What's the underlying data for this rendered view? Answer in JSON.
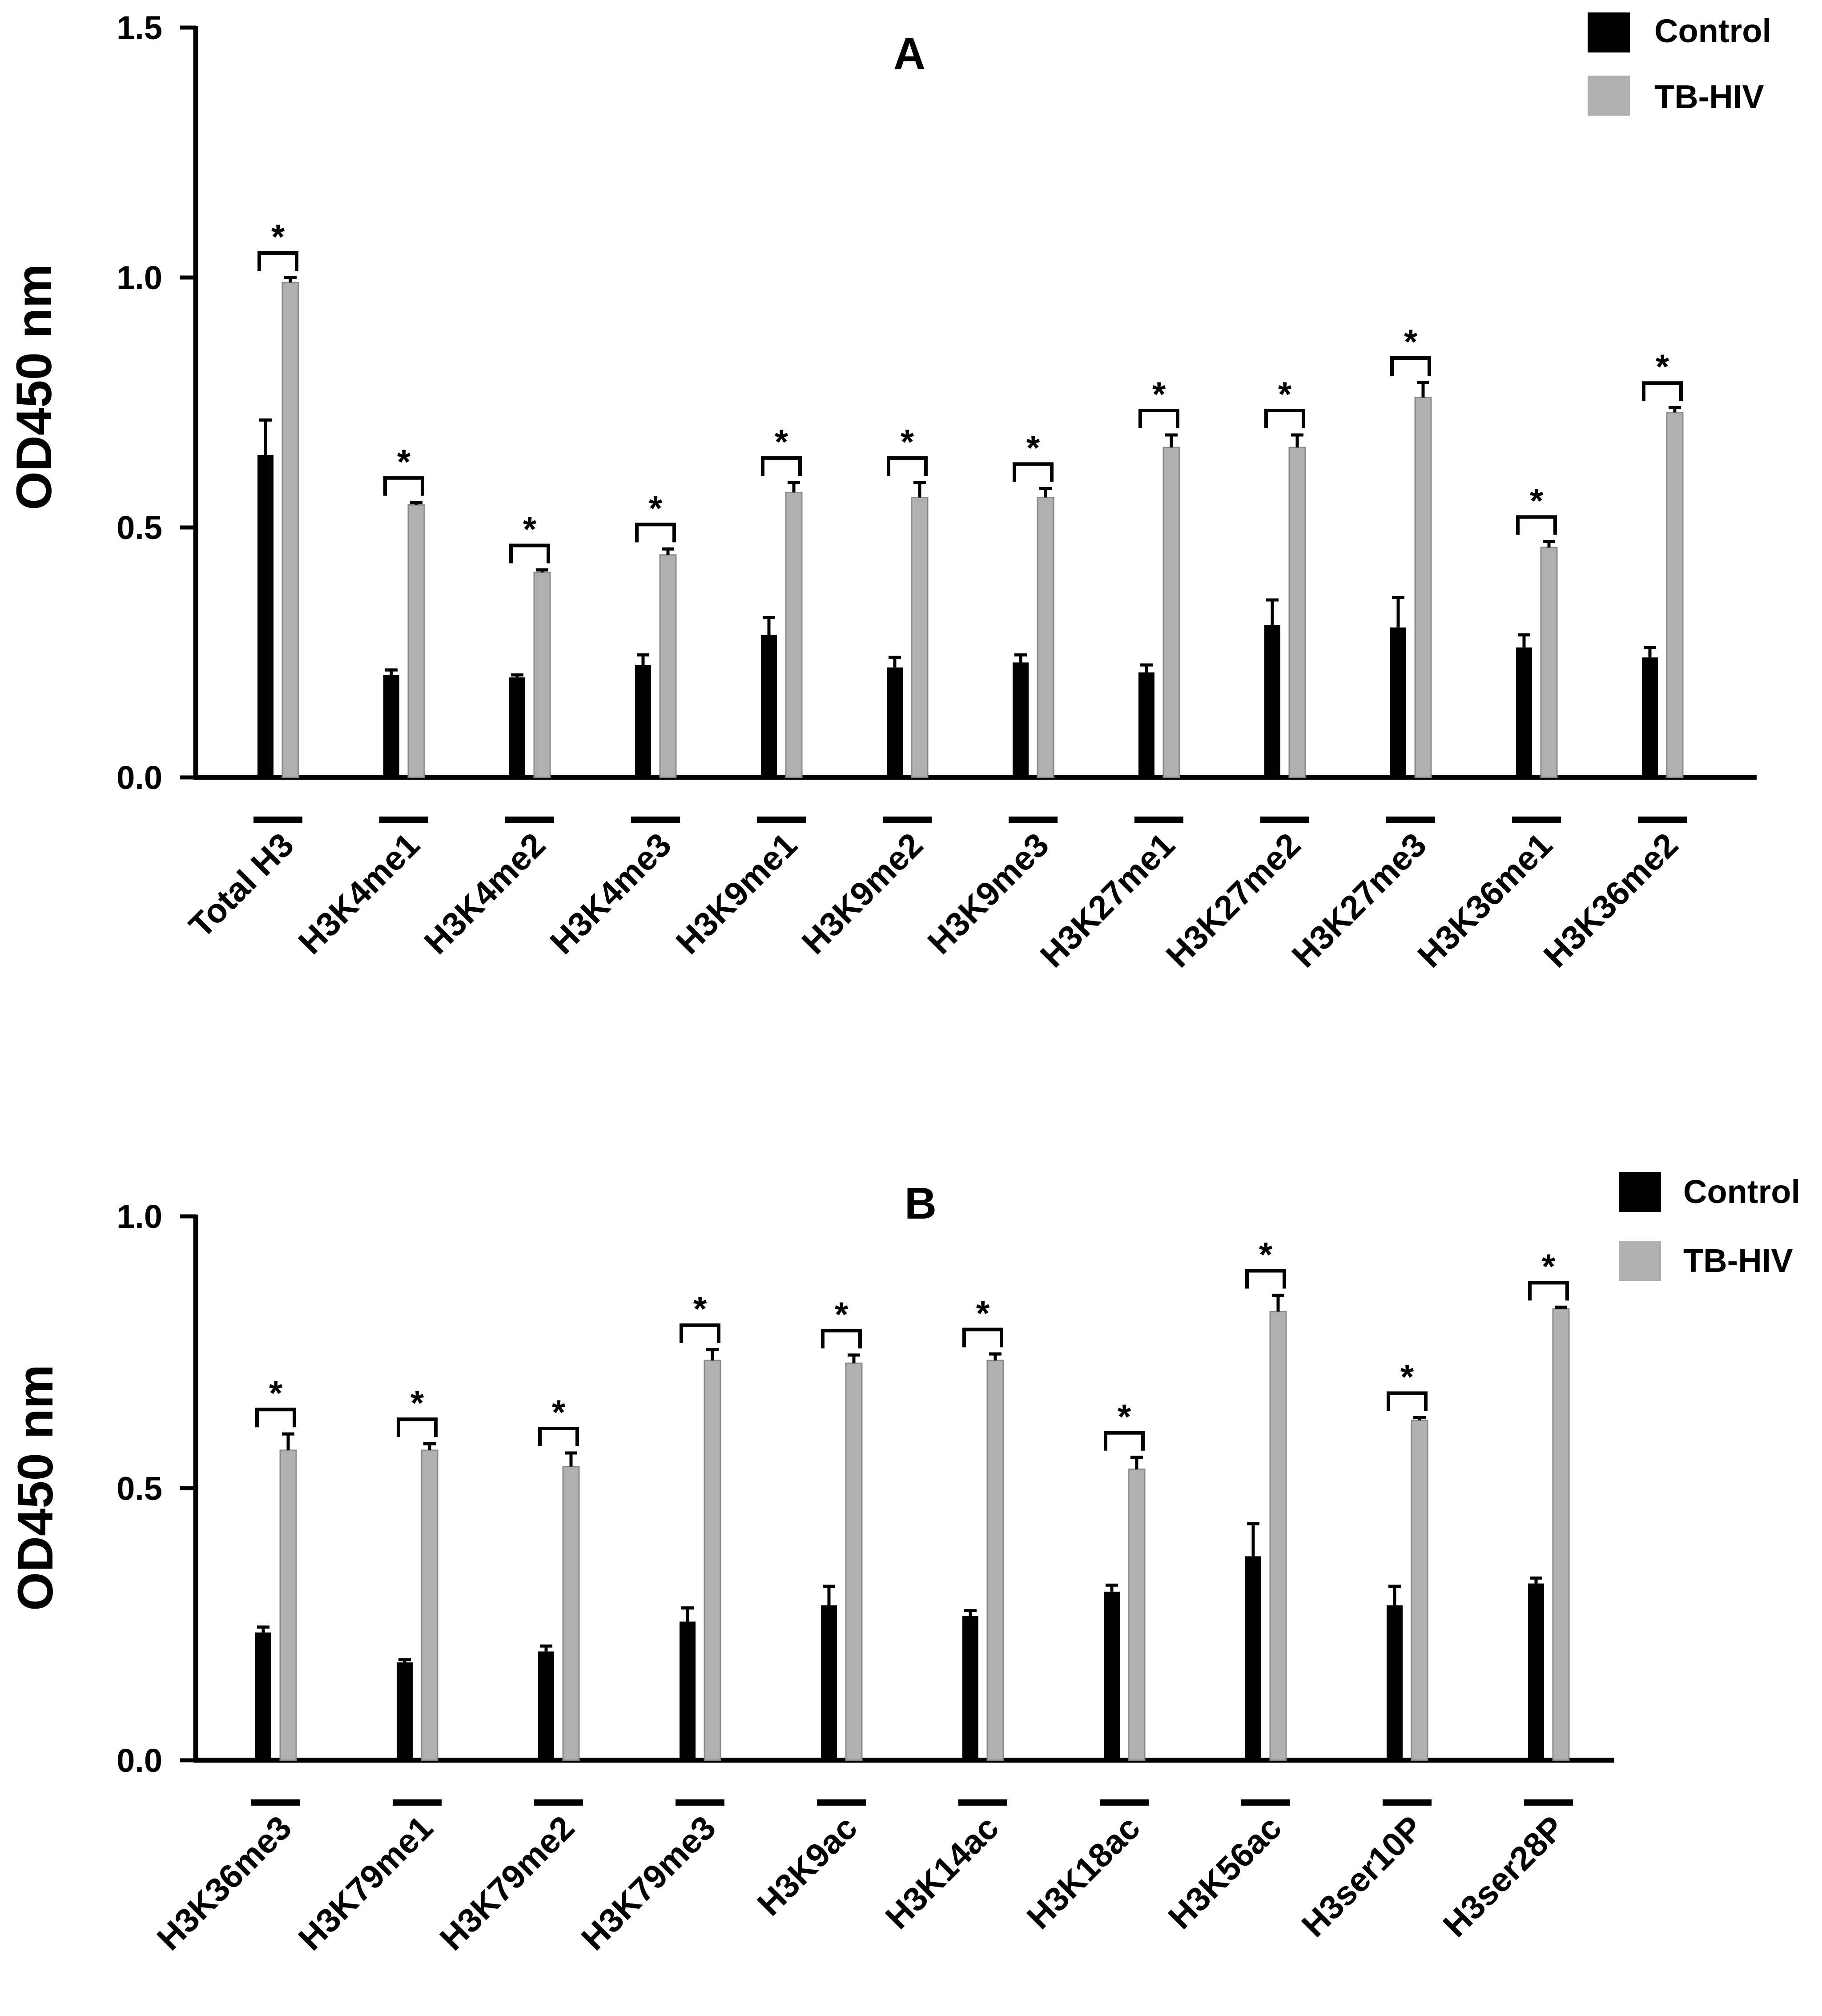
{
  "chart_data": [
    {
      "type": "bar",
      "title": "A",
      "ylabel": "OD450 nm",
      "xlabel": "",
      "ylim": [
        0,
        1.5
      ],
      "yticks": [
        "0.0",
        "0.5",
        "1.0",
        "1.5"
      ],
      "legend_position": "top-right",
      "significance_marker": "*",
      "categories": [
        "Total H3",
        "H3K4me1",
        "H3K4me2",
        "H3K4me3",
        "H3K9me1",
        "H3K9me2",
        "H3K9me3",
        "H3K27me1",
        "H3K27me2",
        "H3K27me3",
        "H3K36me1",
        "H3K36me2"
      ],
      "series": [
        {
          "name": "Control",
          "color": "#000000",
          "values": [
            0.645,
            0.205,
            0.2,
            0.225,
            0.285,
            0.22,
            0.23,
            0.21,
            0.305,
            0.3,
            0.26,
            0.24
          ],
          "errors": [
            0.07,
            0.01,
            0.005,
            0.02,
            0.035,
            0.02,
            0.015,
            0.015,
            0.05,
            0.06,
            0.025,
            0.02
          ]
        },
        {
          "name": "TB-HIV",
          "color": "#b0b0b0",
          "values": [
            0.99,
            0.545,
            0.41,
            0.445,
            0.57,
            0.56,
            0.56,
            0.66,
            0.66,
            0.76,
            0.46,
            0.73
          ],
          "errors": [
            0.01,
            0.005,
            0.005,
            0.012,
            0.02,
            0.03,
            0.018,
            0.025,
            0.025,
            0.03,
            0.012,
            0.01
          ]
        }
      ]
    },
    {
      "type": "bar",
      "title": "B",
      "ylabel": "OD450 nm",
      "xlabel": "",
      "ylim": [
        0,
        1.0
      ],
      "yticks": [
        "0.0",
        "0.5",
        "1.0"
      ],
      "legend_position": "top-right",
      "significance_marker": "*",
      "categories": [
        "H3K36me3",
        "H3K79me1",
        "H3K79me2",
        "H3K79me3",
        "H3K9ac",
        "H3K14ac",
        "H3K18ac",
        "H3K56ac",
        "H3ser10P",
        "H3ser28P"
      ],
      "series": [
        {
          "name": "Control",
          "color": "#000000",
          "values": [
            0.235,
            0.18,
            0.2,
            0.255,
            0.285,
            0.265,
            0.31,
            0.375,
            0.285,
            0.325
          ],
          "errors": [
            0.01,
            0.005,
            0.01,
            0.025,
            0.035,
            0.01,
            0.012,
            0.06,
            0.035,
            0.01
          ]
        },
        {
          "name": "TB-HIV",
          "color": "#b0b0b0",
          "values": [
            0.57,
            0.57,
            0.54,
            0.735,
            0.73,
            0.735,
            0.535,
            0.825,
            0.625,
            0.83
          ],
          "errors": [
            0.03,
            0.012,
            0.025,
            0.02,
            0.015,
            0.012,
            0.022,
            0.03,
            0.005,
            0.003
          ]
        }
      ]
    }
  ]
}
